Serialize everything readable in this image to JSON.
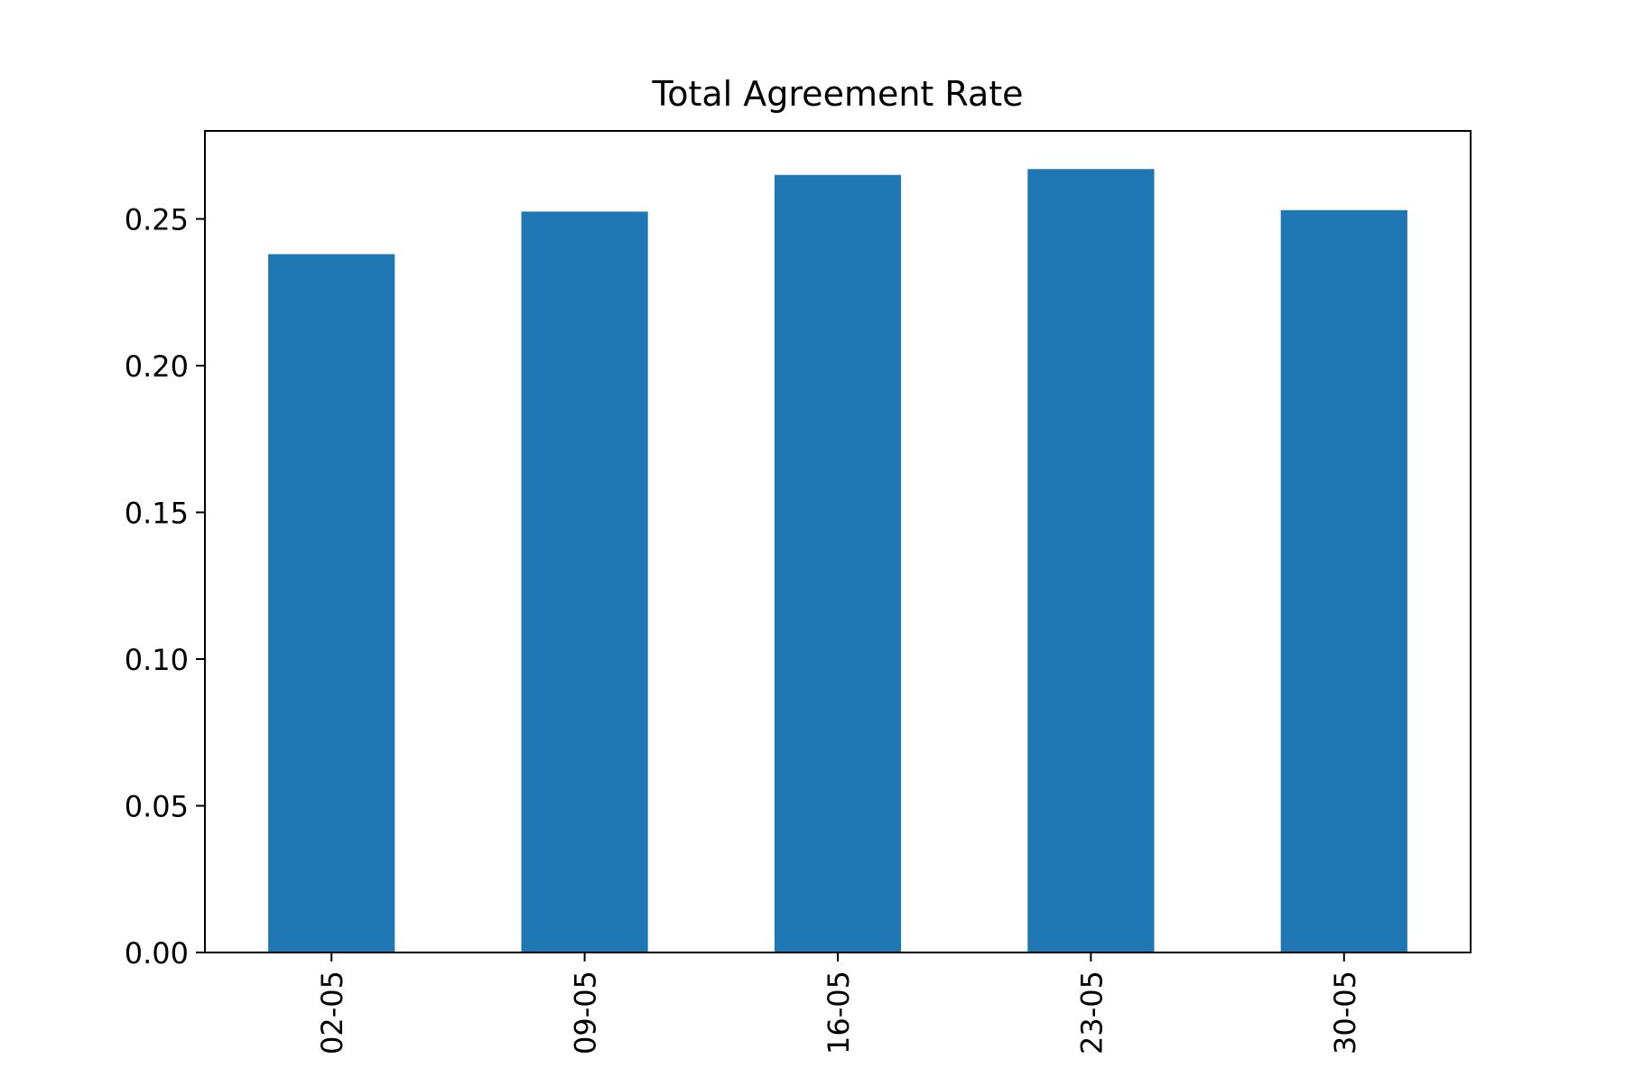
{
  "chart_data": {
    "type": "bar",
    "title": "Total Agreement Rate",
    "xlabel": "",
    "ylabel": "",
    "categories": [
      "02-05",
      "09-05",
      "16-05",
      "23-05",
      "30-05"
    ],
    "values": [
      0.238,
      0.2525,
      0.265,
      0.267,
      0.253
    ],
    "ylim": [
      0,
      0.28
    ],
    "yticks": [
      0.0,
      0.05,
      0.1,
      0.15,
      0.2,
      0.25
    ],
    "ytick_labels": [
      "0.00",
      "0.05",
      "0.10",
      "0.15",
      "0.20",
      "0.25"
    ],
    "grid": false,
    "legend": "none",
    "bar_color": "#1f77b4",
    "axis_color": "#000000"
  }
}
